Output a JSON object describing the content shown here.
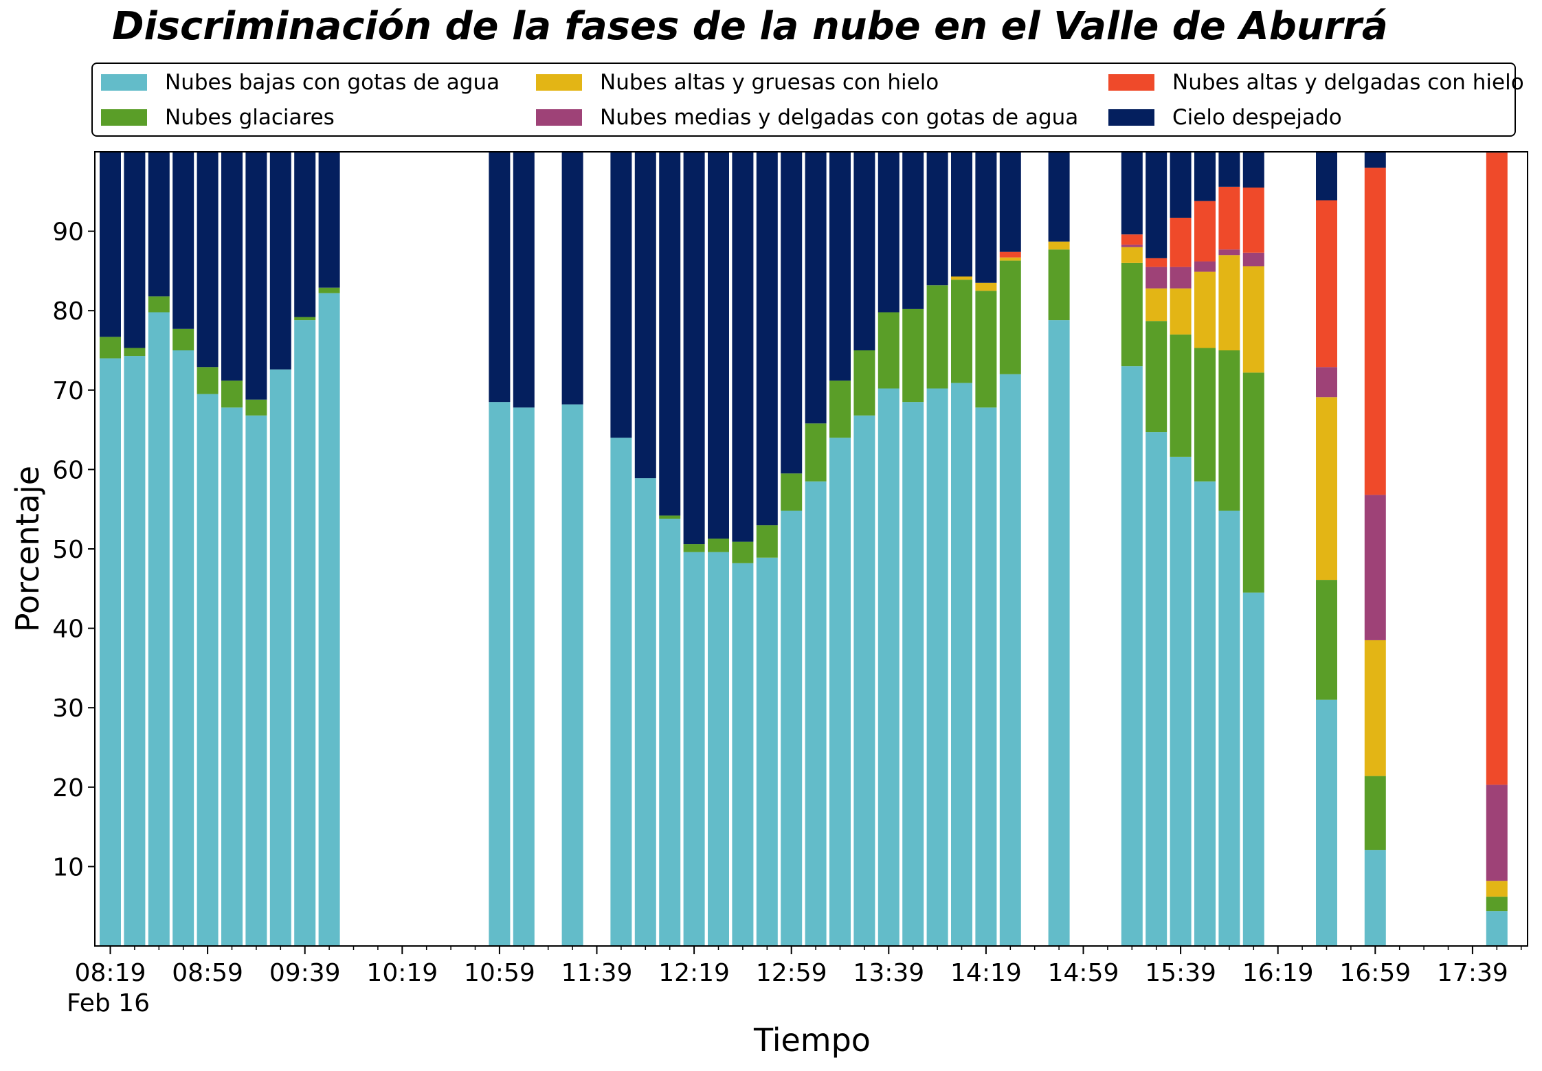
{
  "title": "Discriminación de la fases de la nube en el Valle de Aburrá",
  "chart_data": {
    "type": "bar",
    "stacked": true,
    "title": "Discriminación de la fases de la nube en el Valle de Aburrá",
    "xlabel": "Tiempo",
    "ylabel": "Porcentaje",
    "ylim": [
      0,
      100
    ],
    "yticks": [
      10,
      20,
      30,
      40,
      50,
      60,
      70,
      80,
      90
    ],
    "x_unit_minutes": 10,
    "x_start": "08:19",
    "x_end": "17:59",
    "xtick_labels": [
      "08:19",
      "08:59",
      "09:39",
      "10:19",
      "10:59",
      "11:39",
      "12:19",
      "12:59",
      "13:39",
      "14:19",
      "14:59",
      "15:39",
      "16:19",
      "16:59",
      "17:39"
    ],
    "xtick_date_label": "Feb 16",
    "legend_position": "top",
    "grid": false,
    "series": [
      {
        "name": "Nubes bajas con gotas de agua",
        "color": "#63bcc9"
      },
      {
        "name": "Nubes glaciares",
        "color": "#5a9e28"
      },
      {
        "name": "Nubes altas y gruesas con hielo",
        "color": "#e3b515"
      },
      {
        "name": "Nubes medias y delgadas con gotas de agua",
        "color": "#9e4277"
      },
      {
        "name": "Nubes altas y delgadas con hielo",
        "color": "#ef4a2a"
      },
      {
        "name": "Cielo despejado",
        "color": "#041f5e"
      }
    ],
    "bars": [
      {
        "time": "08:19",
        "values": [
          74,
          2.7,
          0,
          0,
          0,
          23.3
        ]
      },
      {
        "time": "08:29",
        "values": [
          74.3,
          1,
          0,
          0,
          0,
          24.7
        ]
      },
      {
        "time": "08:39",
        "values": [
          79.8,
          2,
          0,
          0,
          0,
          18.2
        ]
      },
      {
        "time": "08:49",
        "values": [
          75,
          2.7,
          0,
          0,
          0,
          22.3
        ]
      },
      {
        "time": "08:59",
        "values": [
          69.5,
          3.4,
          0,
          0,
          0,
          27.1
        ]
      },
      {
        "time": "09:09",
        "values": [
          67.8,
          3.4,
          0,
          0,
          0,
          28.8
        ]
      },
      {
        "time": "09:19",
        "values": [
          66.8,
          2,
          0,
          0,
          0,
          31.2
        ]
      },
      {
        "time": "09:29",
        "values": [
          72.6,
          0,
          0,
          0,
          0,
          27.4
        ]
      },
      {
        "time": "09:39",
        "values": [
          78.8,
          0.4,
          0,
          0,
          0,
          20.8
        ]
      },
      {
        "time": "09:49",
        "values": [
          82.2,
          0.7,
          0,
          0,
          0,
          17.1
        ]
      },
      {
        "time": "10:59",
        "values": [
          68.5,
          0,
          0,
          0,
          0,
          31.5
        ]
      },
      {
        "time": "11:09",
        "values": [
          67.8,
          0,
          0,
          0,
          0,
          32.2
        ]
      },
      {
        "time": "11:29",
        "values": [
          68.2,
          0,
          0,
          0,
          0,
          31.8
        ]
      },
      {
        "time": "11:49",
        "values": [
          64,
          0,
          0,
          0,
          0,
          36
        ]
      },
      {
        "time": "11:59",
        "values": [
          58.9,
          0,
          0,
          0,
          0,
          41.1
        ]
      },
      {
        "time": "12:09",
        "values": [
          53.8,
          0.4,
          0,
          0,
          0,
          45.8
        ]
      },
      {
        "time": "12:19",
        "values": [
          49.6,
          1,
          0,
          0,
          0,
          49.4
        ]
      },
      {
        "time": "12:29",
        "values": [
          49.6,
          1.7,
          0,
          0,
          0,
          48.7
        ]
      },
      {
        "time": "12:39",
        "values": [
          48.2,
          2.7,
          0,
          0,
          0,
          49.1
        ]
      },
      {
        "time": "12:49",
        "values": [
          48.9,
          4.1,
          0,
          0,
          0,
          47
        ]
      },
      {
        "time": "12:59",
        "values": [
          54.8,
          4.7,
          0,
          0,
          0,
          40.5
        ]
      },
      {
        "time": "13:09",
        "values": [
          58.5,
          7.3,
          0,
          0,
          0,
          34.2
        ]
      },
      {
        "time": "13:19",
        "values": [
          64,
          7.2,
          0,
          0,
          0,
          28.8
        ]
      },
      {
        "time": "13:29",
        "values": [
          66.8,
          8.2,
          0,
          0,
          0,
          25
        ]
      },
      {
        "time": "13:39",
        "values": [
          70.2,
          9.6,
          0,
          0,
          0,
          20.2
        ]
      },
      {
        "time": "13:49",
        "values": [
          68.5,
          11.7,
          0,
          0,
          0,
          19.8
        ]
      },
      {
        "time": "13:59",
        "values": [
          70.2,
          13,
          0,
          0,
          0,
          16.8
        ]
      },
      {
        "time": "14:09",
        "values": [
          70.9,
          13,
          0.4,
          0,
          0,
          15.7
        ]
      },
      {
        "time": "14:19",
        "values": [
          67.8,
          14.7,
          1,
          0,
          0,
          16.5
        ]
      },
      {
        "time": "14:29",
        "values": [
          72,
          14.3,
          0.4,
          0,
          0.7,
          12.6
        ]
      },
      {
        "time": "14:49",
        "values": [
          78.8,
          8.9,
          1,
          0,
          0,
          11.3
        ]
      },
      {
        "time": "15:19",
        "values": [
          73,
          13,
          2,
          0.3,
          1.3,
          10.4
        ]
      },
      {
        "time": "15:29",
        "values": [
          64.7,
          14,
          4.1,
          2.7,
          1.1,
          13.4
        ]
      },
      {
        "time": "15:39",
        "values": [
          61.6,
          15.4,
          5.8,
          2.7,
          6.2,
          8.3
        ]
      },
      {
        "time": "15:49",
        "values": [
          58.5,
          16.8,
          9.6,
          1.3,
          7.6,
          6.2
        ]
      },
      {
        "time": "15:59",
        "values": [
          54.8,
          20.2,
          12,
          0.7,
          7.9,
          4.4
        ]
      },
      {
        "time": "16:09",
        "values": [
          44.5,
          27.7,
          13.4,
          1.7,
          8.2,
          4.5
        ]
      },
      {
        "time": "16:39",
        "values": [
          31,
          15.1,
          23,
          3.8,
          21,
          6.1
        ]
      },
      {
        "time": "16:59",
        "values": [
          12.1,
          9.3,
          17.1,
          18.3,
          41.2,
          2
        ]
      },
      {
        "time": "17:49",
        "values": [
          4.4,
          1.8,
          2,
          12.1,
          79.6,
          0.1
        ]
      }
    ]
  }
}
